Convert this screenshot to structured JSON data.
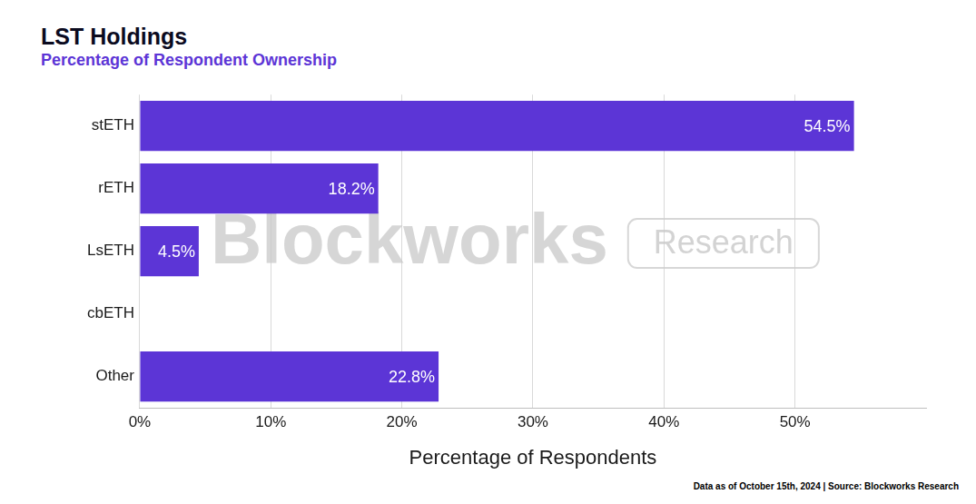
{
  "chart_data": {
    "type": "bar",
    "orientation": "horizontal",
    "title": "LST Holdings",
    "subtitle": "Percentage of Respondent Ownership",
    "x_label": "Percentage of Respondents",
    "source": "Data as of October 15th, 2024 | Source: Blockworks Research",
    "watermark": [
      "Blockworks",
      "Research"
    ],
    "categories": [
      "stETH",
      "rETH",
      "LsETH",
      "cbETH",
      "Other"
    ],
    "values": [
      54.5,
      18.2,
      4.5,
      0,
      22.8
    ],
    "value_labels": [
      "54.5%",
      "18.2%",
      "4.5%",
      null,
      "22.8%"
    ],
    "color": "#5c35d6",
    "xlim": [
      0,
      60
    ],
    "xticks": [
      {
        "value": 0,
        "label": "0%"
      },
      {
        "value": 10,
        "label": "10%"
      },
      {
        "value": 20,
        "label": "20%"
      },
      {
        "value": 30,
        "label": "30%"
      },
      {
        "value": 40,
        "label": "40%"
      },
      {
        "value": 50,
        "label": "50%"
      }
    ],
    "grid": true,
    "data_labels": true
  }
}
